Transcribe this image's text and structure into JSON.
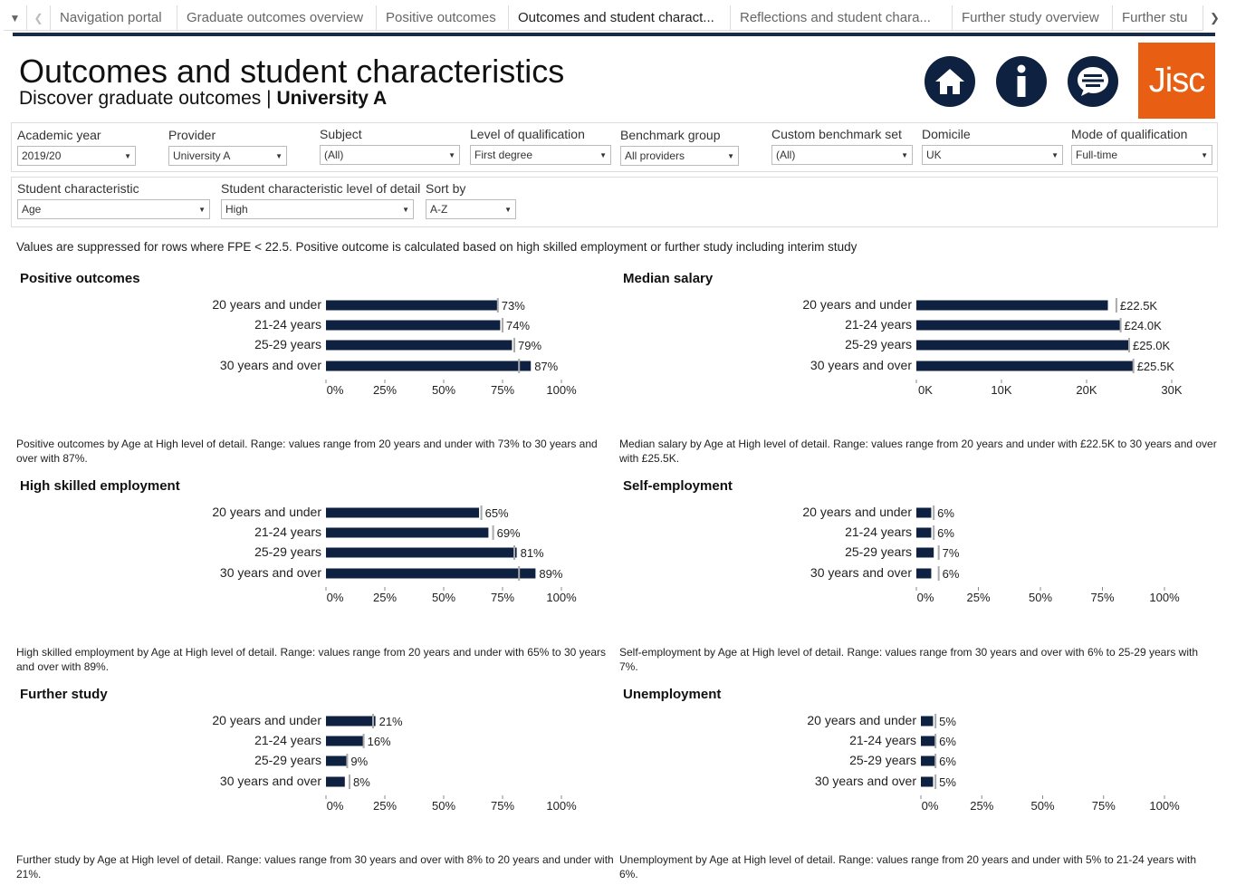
{
  "tabs": {
    "items": [
      "Navigation portal",
      "Graduate outcomes overview",
      "Positive outcomes",
      "Outcomes and student charact...",
      "Reflections and student chara...",
      "Further study overview",
      "Further stu"
    ],
    "active_index": 3
  },
  "header": {
    "title": "Outcomes and student characteristics",
    "subtitle_prefix": "Discover graduate outcomes | ",
    "subtitle_provider": "University A",
    "logo_text": "Jisc",
    "icons": [
      "home-icon",
      "info-icon",
      "menu-icon"
    ]
  },
  "filters": {
    "academic_year": {
      "label": "Academic year",
      "value": "2019/20"
    },
    "provider": {
      "label": "Provider",
      "value": "University A"
    },
    "subject": {
      "label": "Subject",
      "value": "(All)"
    },
    "level": {
      "label": "Level of qualification",
      "value": "First degree"
    },
    "benchmark": {
      "label": "Benchmark group",
      "value": "All providers"
    },
    "custom_benchmark": {
      "label": "Custom benchmark set",
      "value": "(All)"
    },
    "domicile": {
      "label": "Domicile",
      "value": "UK"
    },
    "mode": {
      "label": "Mode of qualification",
      "value": "Full-time"
    },
    "student_characteristic": {
      "label": "Student characteristic",
      "value": "Age"
    },
    "detail_level": {
      "label": "Student characteristic level of detail",
      "value": "High"
    },
    "sort_by": {
      "label": "Sort by",
      "value": "A-Z"
    }
  },
  "note": "Values are suppressed for rows where FPE < 22.5. Positive outcome is calculated based on high skilled employment or further study including interim study",
  "colors": {
    "bar": "#0e2140",
    "benchmark": "#aaaaaa",
    "accent": "#e85e13"
  },
  "chart_data": [
    {
      "type": "bar",
      "title": "Positive outcomes",
      "categories": [
        "20 years and under",
        "21-24 years",
        "25-29 years",
        "30 years and over"
      ],
      "values": [
        73,
        74,
        79,
        87
      ],
      "labels": [
        "73%",
        "74%",
        "79%",
        "87%"
      ],
      "benchmarks": [
        73,
        75,
        80,
        82
      ],
      "xlim": [
        0,
        100
      ],
      "ticks": [
        0,
        25,
        50,
        75,
        100
      ],
      "tick_labels": [
        "0%",
        "25%",
        "50%",
        "75%",
        "100%"
      ],
      "caption": "Positive outcomes by Age at High level of detail. Range: values range from 20 years and under with 73% to 30 years and over with 87%."
    },
    {
      "type": "bar",
      "title": "Median salary",
      "categories": [
        "20 years and under",
        "21-24 years",
        "25-29 years",
        "30 years and over"
      ],
      "values": [
        22.5,
        24.0,
        25.0,
        25.5
      ],
      "labels": [
        "£22.5K",
        "£24.0K",
        "£25.0K",
        "£25.5K"
      ],
      "benchmarks": [
        23.5,
        24.0,
        25.0,
        25.5
      ],
      "xlim": [
        0,
        30
      ],
      "ticks": [
        0,
        10,
        20,
        30
      ],
      "tick_labels": [
        "0K",
        "10K",
        "20K",
        "30K"
      ],
      "caption": "Median salary by Age at High level of detail. Range: values range from 20 years and under with £22.5K to 30 years and over with £25.5K."
    },
    {
      "type": "bar",
      "title": "High skilled employment",
      "categories": [
        "20 years and under",
        "21-24 years",
        "25-29 years",
        "30 years and over"
      ],
      "values": [
        65,
        69,
        81,
        89
      ],
      "labels": [
        "65%",
        "69%",
        "81%",
        "89%"
      ],
      "benchmarks": [
        66,
        71,
        80,
        82
      ],
      "xlim": [
        0,
        100
      ],
      "ticks": [
        0,
        25,
        50,
        75,
        100
      ],
      "tick_labels": [
        "0%",
        "25%",
        "50%",
        "75%",
        "100%"
      ],
      "caption": "High skilled employment by Age at High level of detail. Range: values range from 20 years and under with 65% to 30 years and over with 89%."
    },
    {
      "type": "bar",
      "title": "Self-employment",
      "categories": [
        "20 years and under",
        "21-24 years",
        "25-29 years",
        "30 years and over"
      ],
      "values": [
        6,
        6,
        7,
        6
      ],
      "labels": [
        "6%",
        "6%",
        "7%",
        "6%"
      ],
      "benchmarks": [
        7,
        7,
        9,
        9
      ],
      "xlim": [
        0,
        100
      ],
      "ticks": [
        0,
        25,
        50,
        75,
        100
      ],
      "tick_labels": [
        "0%",
        "25%",
        "50%",
        "75%",
        "100%"
      ],
      "caption": "Self-employment by Age at High level of detail. Range: values range from 30 years and over with 6% to 25-29 years with 7%."
    },
    {
      "type": "bar",
      "title": "Further study",
      "categories": [
        "20 years and under",
        "21-24 years",
        "25-29 years",
        "30 years and over"
      ],
      "values": [
        21,
        16,
        9,
        8
      ],
      "labels": [
        "21%",
        "16%",
        "9%",
        "8%"
      ],
      "benchmarks": [
        20,
        16,
        9,
        10
      ],
      "xlim": [
        0,
        100
      ],
      "ticks": [
        0,
        25,
        50,
        75,
        100
      ],
      "tick_labels": [
        "0%",
        "25%",
        "50%",
        "75%",
        "100%"
      ],
      "caption": "Further study by Age at High level of detail. Range: values range from 30 years and over with 8% to 20 years and under with 21%."
    },
    {
      "type": "bar",
      "title": "Unemployment",
      "categories": [
        "20 years and under",
        "21-24 years",
        "25-29 years",
        "30 years and over"
      ],
      "values": [
        5,
        6,
        6,
        5
      ],
      "labels": [
        "5%",
        "6%",
        "6%",
        "5%"
      ],
      "benchmarks": [
        6,
        6,
        6,
        6
      ],
      "xlim": [
        0,
        100
      ],
      "ticks": [
        0,
        25,
        50,
        75,
        100
      ],
      "tick_labels": [
        "0%",
        "25%",
        "50%",
        "75%",
        "100%"
      ],
      "caption": "Unemployment by Age at High level of detail. Range: values range from 20 years and under with 5% to 21-24 years with 6%."
    }
  ]
}
